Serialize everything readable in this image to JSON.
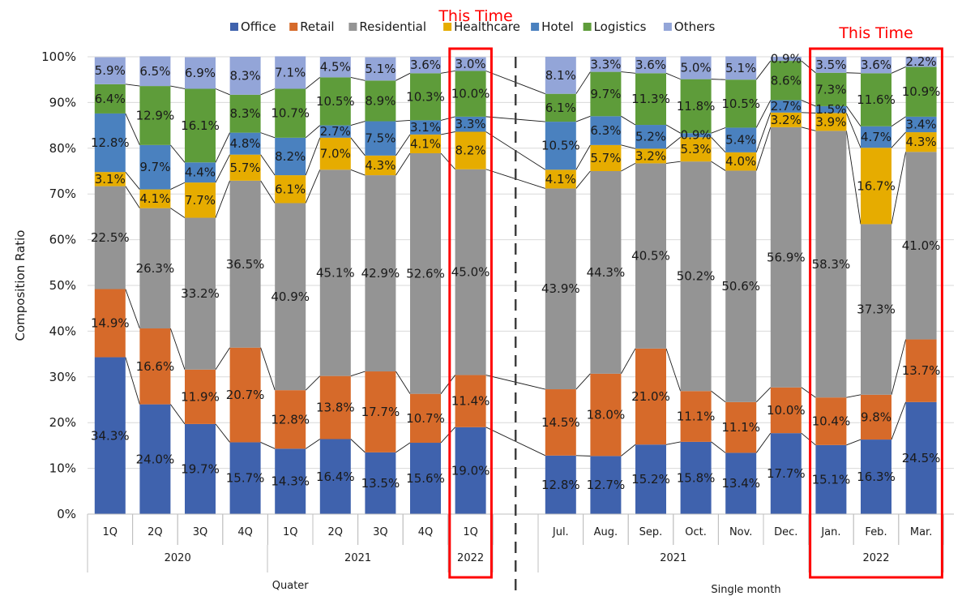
{
  "chart_data": {
    "type": "bar",
    "stacked": true,
    "ylabel": "Composition Ratio",
    "ylim": [
      0,
      100
    ],
    "y_ticks": [
      "0%",
      "10%",
      "20%",
      "30%",
      "40%",
      "50%",
      "60%",
      "70%",
      "80%",
      "90%",
      "100%"
    ],
    "colors": [
      "#3f62ad",
      "#d66a2a",
      "#949494",
      "#e6ac00",
      "#4a81bf",
      "#5e9c3a",
      "#93a5d8"
    ],
    "groups": [
      {
        "name": "Quater",
        "years": [
          {
            "label": "2020",
            "months": [
              "1Q",
              "2Q",
              "3Q",
              "4Q"
            ]
          },
          {
            "label": "2021",
            "months": [
              "1Q",
              "2Q",
              "3Q",
              "4Q"
            ]
          },
          {
            "label": "2022",
            "months": [
              "1Q"
            ]
          }
        ]
      },
      {
        "name": "Single month",
        "years": [
          {
            "label": "2021",
            "months": [
              "Jul.",
              "Aug.",
              "Sep.",
              "Oct.",
              "Nov.",
              "Dec."
            ]
          },
          {
            "label": "2022",
            "months": [
              "Jan.",
              "Feb.",
              "Mar."
            ]
          }
        ]
      }
    ],
    "categories": [
      "1Q 2020",
      "2Q 2020",
      "3Q 2020",
      "4Q 2020",
      "1Q 2021",
      "2Q 2021",
      "3Q 2021",
      "4Q 2021",
      "1Q 2022",
      "Jul. 2021",
      "Aug. 2021",
      "Sep. 2021",
      "Oct. 2021",
      "Nov. 2021",
      "Dec. 2021",
      "Jan. 2022",
      "Feb. 2022",
      "Mar. 2022"
    ],
    "series": [
      {
        "name": "Office",
        "values": [
          34.3,
          24.0,
          19.7,
          15.7,
          14.3,
          16.4,
          13.5,
          15.6,
          19.0,
          12.8,
          12.7,
          15.2,
          15.8,
          13.4,
          17.7,
          15.1,
          16.3,
          24.5
        ]
      },
      {
        "name": "Retail",
        "values": [
          14.9,
          16.6,
          11.9,
          20.7,
          12.8,
          13.8,
          17.7,
          10.7,
          11.4,
          14.5,
          18.0,
          21.0,
          11.1,
          11.1,
          10.0,
          10.4,
          9.8,
          13.7
        ]
      },
      {
        "name": "Residential",
        "values": [
          22.5,
          26.3,
          33.2,
          36.5,
          40.9,
          45.1,
          42.9,
          52.6,
          45.0,
          43.9,
          44.3,
          40.5,
          50.2,
          50.6,
          56.9,
          58.3,
          37.3,
          41.0
        ]
      },
      {
        "name": "Healthcare",
        "values": [
          3.1,
          4.1,
          7.7,
          5.7,
          6.1,
          7.0,
          4.3,
          4.1,
          8.2,
          4.1,
          5.7,
          3.2,
          5.3,
          4.0,
          3.2,
          3.9,
          16.7,
          4.3
        ]
      },
      {
        "name": "Hotel",
        "values": [
          12.8,
          9.7,
          4.4,
          4.8,
          8.2,
          2.7,
          7.5,
          3.1,
          3.3,
          10.5,
          6.3,
          5.2,
          0.9,
          5.4,
          2.7,
          1.5,
          4.7,
          3.4
        ]
      },
      {
        "name": "Logistics",
        "values": [
          6.4,
          12.9,
          16.1,
          8.3,
          10.7,
          10.5,
          8.9,
          10.3,
          10.0,
          6.1,
          9.7,
          11.3,
          11.8,
          10.5,
          8.6,
          7.3,
          11.6,
          10.9
        ]
      },
      {
        "name": "Others",
        "values": [
          5.9,
          6.5,
          6.9,
          8.3,
          7.1,
          4.5,
          5.1,
          3.6,
          3.0,
          8.1,
          3.3,
          3.6,
          5.0,
          5.1,
          0.9,
          3.5,
          3.6,
          2.2
        ]
      }
    ],
    "annotations": [
      {
        "text": "This Time",
        "highlight": [
          "1Q 2022"
        ]
      },
      {
        "text": "This Time",
        "highlight": [
          "Jan. 2022",
          "Feb. 2022",
          "Mar. 2022"
        ]
      }
    ],
    "legend_position": "top"
  }
}
